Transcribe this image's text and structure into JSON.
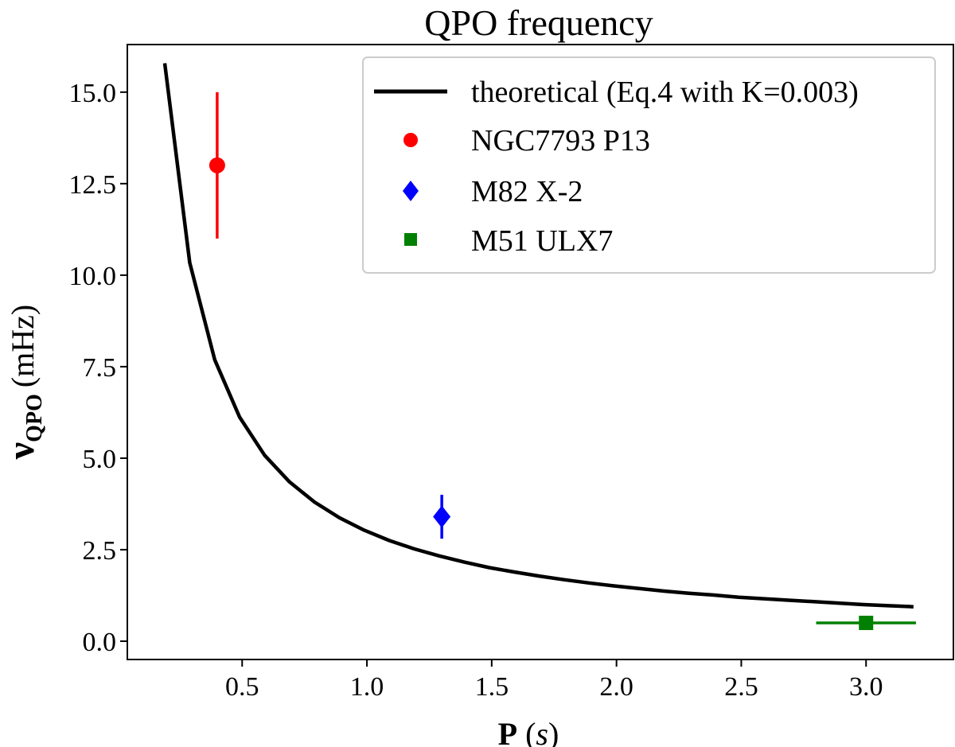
{
  "chart_data": {
    "type": "line",
    "title": "QPO frequency",
    "xlabel": {
      "main": "P",
      "unit": "s"
    },
    "ylabel": {
      "symbol": "ν",
      "subscript": "QPO",
      "unit": "(mHz)"
    },
    "xlim": [
      0.04,
      3.35
    ],
    "ylim": [
      -0.5,
      16.3
    ],
    "xticks": [
      0.5,
      1.0,
      1.5,
      2.0,
      2.5,
      3.0
    ],
    "xtick_labels": [
      "0.5",
      "1.0",
      "1.5",
      "2.0",
      "2.5",
      "3.0"
    ],
    "yticks": [
      0.0,
      2.5,
      5.0,
      7.5,
      10.0,
      12.5,
      15.0
    ],
    "ytick_labels": [
      "0.0",
      "2.5",
      "5.0",
      "7.5",
      "10.0",
      "12.5",
      "15.0"
    ],
    "legend_position": "top-right",
    "theory": {
      "name": "theoretical (Eq.4 with K=0.003)",
      "color": "#000000",
      "x": [
        0.19,
        0.29,
        0.39,
        0.49,
        0.59,
        0.69,
        0.79,
        0.89,
        0.99,
        1.09,
        1.19,
        1.29,
        1.39,
        1.49,
        1.59,
        1.69,
        1.79,
        1.89,
        1.99,
        2.09,
        2.19,
        2.29,
        2.39,
        2.49,
        2.59,
        2.69,
        2.79,
        2.89,
        2.99,
        3.09,
        3.19
      ],
      "y": [
        15.79,
        10.34,
        7.69,
        6.12,
        5.08,
        4.35,
        3.8,
        3.37,
        3.03,
        2.75,
        2.52,
        2.33,
        2.16,
        2.01,
        1.89,
        1.78,
        1.68,
        1.59,
        1.51,
        1.44,
        1.37,
        1.31,
        1.26,
        1.2,
        1.16,
        1.12,
        1.08,
        1.04,
        1.0,
        0.97,
        0.94
      ]
    },
    "points": [
      {
        "name": "NGC7793 P13",
        "marker": "circle",
        "color": "#ff0000",
        "x": 0.4,
        "y": 13.0,
        "yerr": 2.0,
        "xerr": 0
      },
      {
        "name": "M82 X-2",
        "marker": "diamond",
        "color": "#0000ff",
        "x": 1.3,
        "y": 3.4,
        "yerr": 0.6,
        "xerr": 0
      },
      {
        "name": "M51 ULX7",
        "marker": "square",
        "color": "#008000",
        "x": 3.0,
        "y": 0.5,
        "yerr": 0,
        "xerr": 0.2
      }
    ]
  }
}
